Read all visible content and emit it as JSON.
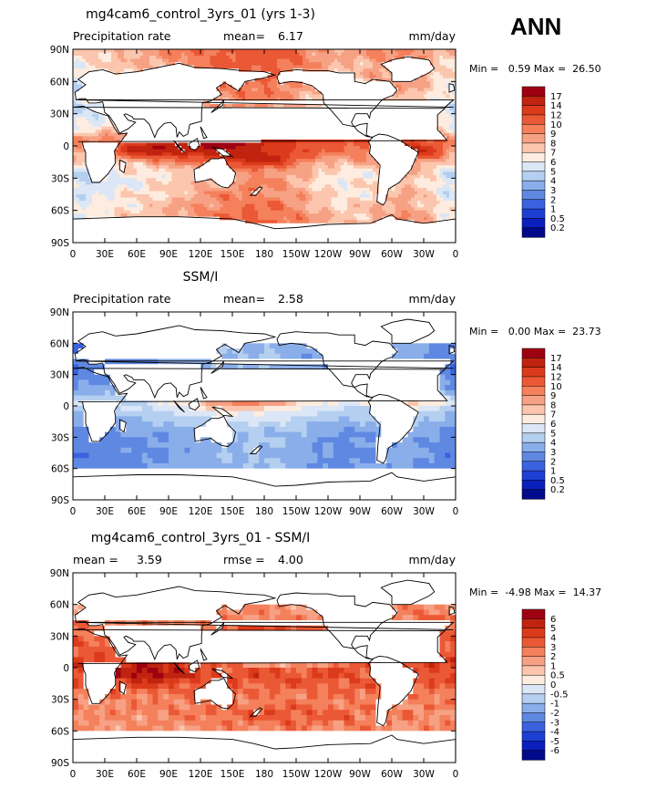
{
  "figure": {
    "season": "ANN"
  },
  "chart_data": [
    {
      "type": "heatmap",
      "title": "mg4cam6_control_3yrs_01 (yrs 1-3)",
      "left_label": "Precipitation rate",
      "stat1": "mean=",
      "stat1_value": "6.17",
      "units": "mm/day",
      "min_text": "Min =   0.59 Max =  26.50",
      "xticks": [
        "0",
        "30E",
        "60E",
        "90E",
        "120E",
        "150E",
        "180",
        "150W",
        "120W",
        "90W",
        "60W",
        "30W",
        "0"
      ],
      "yticks": [
        "90N",
        "60N",
        "30N",
        "0",
        "30S",
        "60S",
        "90S"
      ],
      "colorbar": [
        "17",
        "14",
        "12",
        "10",
        "9",
        "8",
        "7",
        "6",
        "5",
        "4",
        "3",
        "2",
        "1",
        "0.5",
        "0.2"
      ],
      "colors": [
        "#9e0012",
        "#c0230f",
        "#dc3b1b",
        "#eb5835",
        "#f4805c",
        "#f7a184",
        "#fbc6ad",
        "#fdecdf",
        "#dbe6f6",
        "#b4cff0",
        "#8aaee9",
        "#5f88e2",
        "#3b62de",
        "#1e3fd4",
        "#0b1fbd",
        "#000a8a"
      ],
      "mode": "model"
    },
    {
      "type": "heatmap",
      "title": "SSM/I",
      "left_label": "Precipitation rate",
      "stat1": "mean=",
      "stat1_value": "2.58",
      "units": "mm/day",
      "min_text": "Min =   0.00 Max =  23.73",
      "xticks": [
        "0",
        "30E",
        "60E",
        "90E",
        "120E",
        "150E",
        "180",
        "150W",
        "120W",
        "90W",
        "60W",
        "30W",
        "0"
      ],
      "yticks": [
        "90N",
        "60N",
        "30N",
        "0",
        "30S",
        "60S",
        "90S"
      ],
      "colorbar": [
        "17",
        "14",
        "12",
        "10",
        "9",
        "8",
        "7",
        "6",
        "5",
        "4",
        "3",
        "2",
        "1",
        "0.5",
        "0.2"
      ],
      "colors": [
        "#9e0012",
        "#c0230f",
        "#dc3b1b",
        "#eb5835",
        "#f4805c",
        "#f7a184",
        "#fbc6ad",
        "#fdecdf",
        "#dbe6f6",
        "#b4cff0",
        "#8aaee9",
        "#5f88e2",
        "#3b62de",
        "#1e3fd4",
        "#0b1fbd",
        "#000a8a"
      ],
      "mode": "obs"
    },
    {
      "type": "heatmap",
      "title": "mg4cam6_control_3yrs_01 - SSM/I",
      "stat1": "mean =",
      "stat1_value": "3.59",
      "stat2": "rmse =",
      "stat2_value": "4.00",
      "units": "mm/day",
      "min_text": "Min =  -4.98 Max =  14.37",
      "xticks": [
        "0",
        "30E",
        "60E",
        "90E",
        "120E",
        "150E",
        "180",
        "150W",
        "120W",
        "90W",
        "60W",
        "30W",
        "0"
      ],
      "yticks": [
        "90N",
        "60N",
        "30N",
        "0",
        "30S",
        "60S",
        "90S"
      ],
      "colorbar": [
        "6",
        "5",
        "4",
        "3",
        "2",
        "1",
        "0.5",
        "0",
        "-0.5",
        "-1",
        "-2",
        "-3",
        "-4",
        "-5",
        "-6"
      ],
      "colors": [
        "#9e0012",
        "#c0230f",
        "#dc3b1b",
        "#eb5835",
        "#f4805c",
        "#f7a184",
        "#fbc6ad",
        "#fdecdf",
        "#dbe6f6",
        "#b4cff0",
        "#8aaee9",
        "#5f88e2",
        "#3b62de",
        "#1e3fd4",
        "#0b1fbd",
        "#000a8a"
      ],
      "mode": "diff"
    }
  ]
}
